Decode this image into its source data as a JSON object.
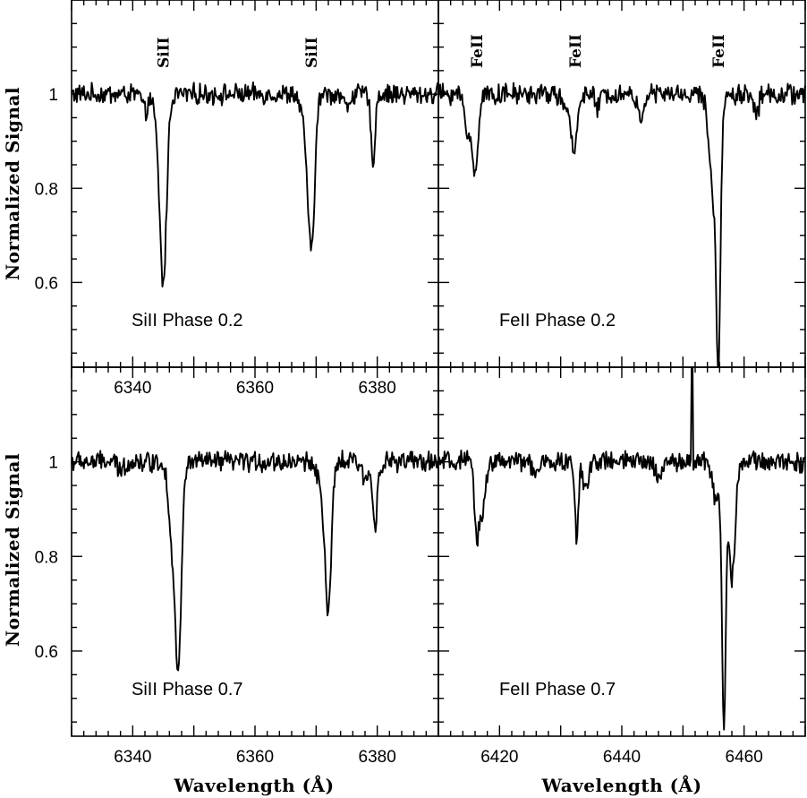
{
  "chart_data": [
    {
      "type": "line",
      "panel": "top-left",
      "label": "SiII Phase 0.2",
      "ylabel": "Normalized Signal",
      "xlim": [
        6330,
        6390
      ],
      "ylim": [
        0.42,
        1.2
      ],
      "xticks": [
        "6340",
        "6360",
        "6380"
      ],
      "yticks": [
        "0.6",
        "0.8",
        "1"
      ],
      "line_labels": [
        {
          "text": "SiII",
          "x": 6345
        },
        {
          "text": "SiII",
          "x": 6369.2
        }
      ],
      "continuum": 1.0,
      "noise": 0.018,
      "lines": [
        {
          "center": 6345.0,
          "depth": 0.39,
          "width": 0.55
        },
        {
          "center": 6344.0,
          "depth": 0.05,
          "width": 0.6
        },
        {
          "center": 6369.2,
          "depth": 0.33,
          "width": 0.55
        },
        {
          "center": 6368.0,
          "depth": 0.05,
          "width": 0.6
        },
        {
          "center": 6379.3,
          "depth": 0.14,
          "width": 0.35
        },
        {
          "center": 6342.0,
          "depth": 0.04,
          "width": 0.4
        },
        {
          "center": 6375.0,
          "depth": 0.03,
          "width": 0.4
        }
      ]
    },
    {
      "type": "line",
      "panel": "top-right",
      "label": "FeII Phase 0.2",
      "xlim": [
        6410,
        6470
      ],
      "ylim": [
        0.42,
        1.2
      ],
      "xticks": [],
      "yticks": [],
      "line_labels": [
        {
          "text": "FeII",
          "x": 6416.3
        },
        {
          "text": "FeII",
          "x": 6432.4
        },
        {
          "text": "FeII",
          "x": 6455.8
        }
      ],
      "continuum": 1.0,
      "noise": 0.018,
      "lines": [
        {
          "center": 6416.0,
          "depth": 0.17,
          "width": 0.45
        },
        {
          "center": 6414.8,
          "depth": 0.08,
          "width": 0.5
        },
        {
          "center": 6432.2,
          "depth": 0.12,
          "width": 0.45
        },
        {
          "center": 6431.0,
          "depth": 0.04,
          "width": 0.6
        },
        {
          "center": 6455.8,
          "depth": 0.48,
          "width": 0.35
        },
        {
          "center": 6455.0,
          "depth": 0.2,
          "width": 0.7
        },
        {
          "center": 6436.0,
          "depth": 0.03,
          "width": 0.4
        },
        {
          "center": 6443.0,
          "depth": 0.05,
          "width": 0.5
        },
        {
          "center": 6462.0,
          "depth": 0.04,
          "width": 0.4
        }
      ]
    },
    {
      "type": "line",
      "panel": "bottom-left",
      "label": "SiII Phase 0.7",
      "xlabel": "Wavelength (Å)",
      "ylabel": "Normalized Signal",
      "xlim": [
        6330,
        6390
      ],
      "ylim": [
        0.42,
        1.2
      ],
      "xticks": [
        "6340",
        "6360",
        "6380"
      ],
      "yticks": [
        "0.6",
        "0.8",
        "1"
      ],
      "line_labels": [],
      "continuum": 1.0,
      "noise": 0.018,
      "lines": [
        {
          "center": 6347.5,
          "depth": 0.4,
          "width": 0.5
        },
        {
          "center": 6346.5,
          "depth": 0.16,
          "width": 0.6
        },
        {
          "center": 6372.0,
          "depth": 0.31,
          "width": 0.5
        },
        {
          "center": 6371.0,
          "depth": 0.06,
          "width": 0.6
        },
        {
          "center": 6379.6,
          "depth": 0.14,
          "width": 0.35
        },
        {
          "center": 6378.0,
          "depth": 0.04,
          "width": 0.5
        },
        {
          "center": 6338.0,
          "depth": 0.02,
          "width": 0.5
        }
      ]
    },
    {
      "type": "line",
      "panel": "bottom-right",
      "label": "FeII Phase 0.7",
      "xlabel": "Wavelength (Å)",
      "xlim": [
        6410,
        6470
      ],
      "ylim": [
        0.42,
        1.2
      ],
      "xticks": [
        "6420",
        "6440",
        "6460"
      ],
      "yticks": [],
      "line_labels": [],
      "continuum": 1.0,
      "noise": 0.018,
      "spike": {
        "x": 6451.5,
        "y": 1.2
      },
      "lines": [
        {
          "center": 6416.3,
          "depth": 0.16,
          "width": 0.4
        },
        {
          "center": 6417.3,
          "depth": 0.1,
          "width": 0.4
        },
        {
          "center": 6432.6,
          "depth": 0.16,
          "width": 0.3
        },
        {
          "center": 6434.0,
          "depth": 0.06,
          "width": 0.4
        },
        {
          "center": 6456.7,
          "depth": 0.55,
          "width": 0.3
        },
        {
          "center": 6458.0,
          "depth": 0.25,
          "width": 0.5
        },
        {
          "center": 6455.5,
          "depth": 0.08,
          "width": 0.6
        },
        {
          "center": 6426.0,
          "depth": 0.03,
          "width": 0.5
        },
        {
          "center": 6446.0,
          "depth": 0.03,
          "width": 0.5
        }
      ]
    }
  ]
}
